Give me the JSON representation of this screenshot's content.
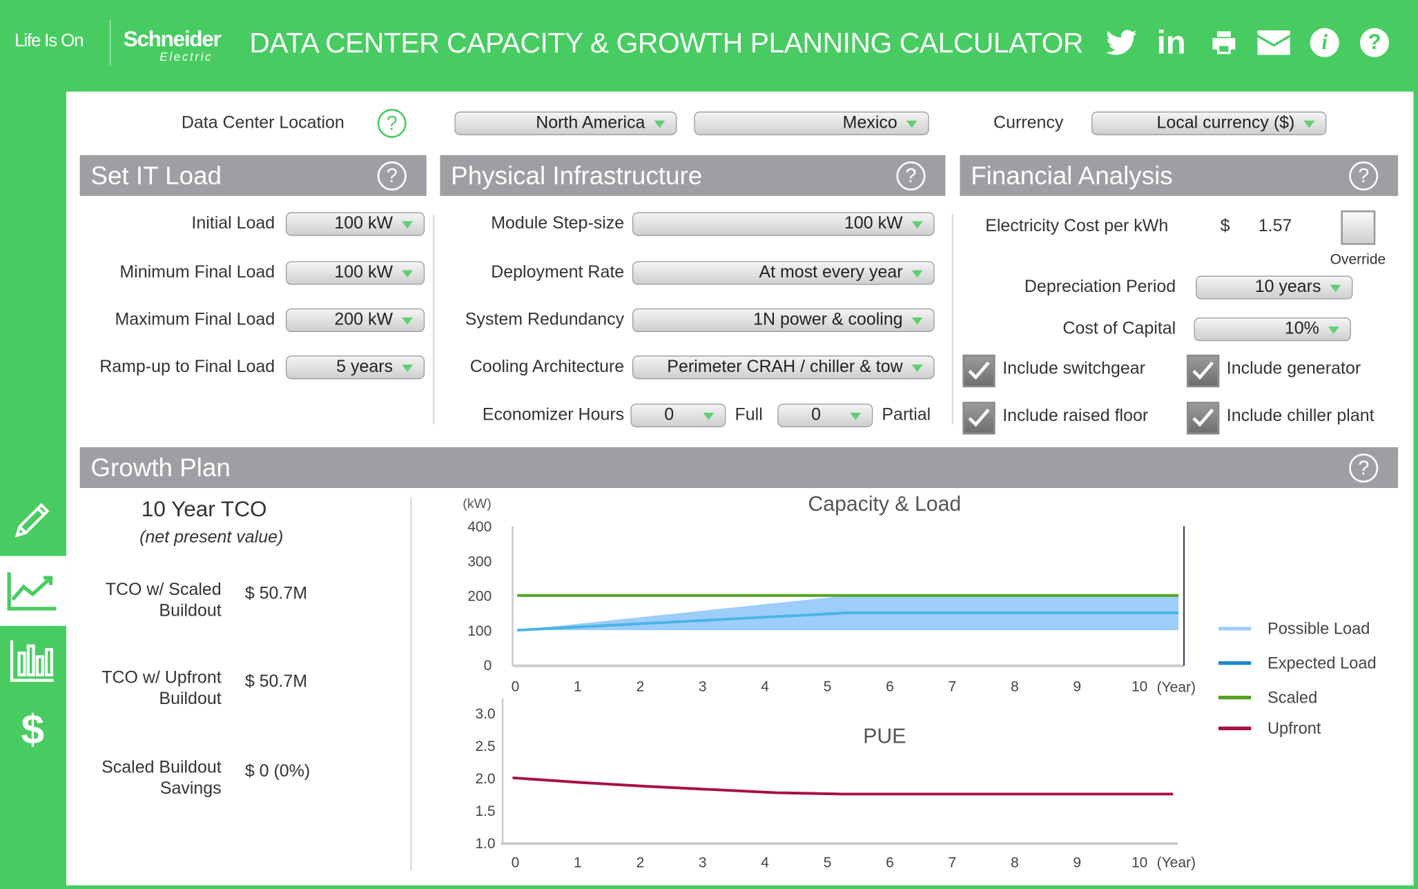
{
  "header": {
    "logo_tagline": "Life Is On",
    "logo_brand": "Schneider",
    "logo_sub": "Electric",
    "title": "DATA CENTER CAPACITY & GROWTH PLANNING CALCULATOR",
    "icons": [
      "twitter-icon",
      "linkedin-icon",
      "print-icon",
      "email-icon",
      "info-icon",
      "help-icon"
    ]
  },
  "sidebar": {
    "items": [
      "edit-icon",
      "growth-icon",
      "bar-chart-icon",
      "dollar-icon"
    ],
    "active": "growth-icon"
  },
  "location": {
    "label": "Data Center Location",
    "region": "North America",
    "country": "Mexico",
    "currency_label": "Currency",
    "currency": "Local currency ($)"
  },
  "it_load": {
    "title": "Set IT Load",
    "rows": [
      {
        "label": "Initial Load",
        "value": "100 kW"
      },
      {
        "label": "Minimum Final Load",
        "value": "100 kW"
      },
      {
        "label": "Maximum Final Load",
        "value": "200 kW"
      },
      {
        "label": "Ramp-up to Final Load",
        "value": "5 years"
      }
    ]
  },
  "physical": {
    "title": "Physical Infrastructure",
    "rows": [
      {
        "label": "Module Step-size",
        "value": "100 kW"
      },
      {
        "label": "Deployment Rate",
        "value": "At most every year"
      },
      {
        "label": "System Redundancy",
        "value": "1N power & cooling"
      },
      {
        "label": "Cooling Architecture",
        "value": "Perimeter CRAH / chiller & tow"
      }
    ],
    "economizer": {
      "label": "Economizer Hours",
      "full_value": "0",
      "full_label": "Full",
      "partial_value": "0",
      "partial_label": "Partial"
    }
  },
  "financial": {
    "title": "Financial Analysis",
    "elec_label": "Electricity Cost per kWh",
    "elec_currency": "$",
    "elec_value": "1.57",
    "override_label": "Override",
    "depr_label": "Depreciation Period",
    "depr_value": "10 years",
    "capital_label": "Cost of Capital",
    "capital_value": "10%",
    "checks": [
      {
        "label": "Include switchgear",
        "checked": true
      },
      {
        "label": "Include generator",
        "checked": true
      },
      {
        "label": "Include raised floor",
        "checked": true
      },
      {
        "label": "Include chiller plant",
        "checked": true
      }
    ]
  },
  "growth": {
    "title": "Growth Plan",
    "tco_title": "10 Year TCO",
    "tco_sub": "(net present value)",
    "rows": [
      {
        "l1": "TCO w/ Scaled",
        "l2": "Buildout",
        "value": "$ 50.7M"
      },
      {
        "l1": "TCO w/ Upfront",
        "l2": "Buildout",
        "value": "$ 50.7M"
      },
      {
        "l1": "Scaled Buildout",
        "l2": "Savings",
        "value": "$ 0 (0%)"
      }
    ]
  },
  "chart_data": [
    {
      "type": "line",
      "title": "Capacity & Load",
      "ylabel": "(kW)",
      "xlabel": "(Year)",
      "ylim": [
        0,
        400
      ],
      "yticks": [
        0,
        100,
        200,
        300,
        400
      ],
      "xticks": [
        0,
        1,
        2,
        3,
        4,
        5,
        6,
        7,
        8,
        9,
        10
      ],
      "series": [
        {
          "name": "Possible Load",
          "type": "area",
          "color": "#9ccdfb",
          "x": [
            0,
            5,
            10
          ],
          "low": [
            100,
            100,
            100
          ],
          "high": [
            100,
            200,
            200
          ]
        },
        {
          "name": "Expected Load",
          "color": "#4ab4e6",
          "legend_color": "#1c88cf",
          "x": [
            0,
            5,
            10
          ],
          "values": [
            100,
            150,
            150
          ]
        },
        {
          "name": "Scaled",
          "color": "#52a41f",
          "x": [
            0,
            10
          ],
          "values": [
            200,
            200
          ]
        },
        {
          "name": "Upfront",
          "color": "#a8103e",
          "x": [],
          "values": []
        }
      ]
    },
    {
      "type": "line",
      "title": "PUE",
      "xlabel": "(Year)",
      "ylim": [
        1.0,
        3.0
      ],
      "yticks": [
        "1.0",
        "1.5",
        "2.0",
        "2.5",
        "3.0"
      ],
      "xticks": [
        0,
        1,
        2,
        3,
        4,
        5,
        6,
        7,
        8,
        9,
        10
      ],
      "series": [
        {
          "name": "Upfront",
          "color": "#a8103e",
          "x": [
            0,
            1,
            2,
            3,
            4,
            5,
            10
          ],
          "values": [
            2.0,
            1.93,
            1.87,
            1.82,
            1.77,
            1.75,
            1.75
          ]
        }
      ]
    }
  ]
}
